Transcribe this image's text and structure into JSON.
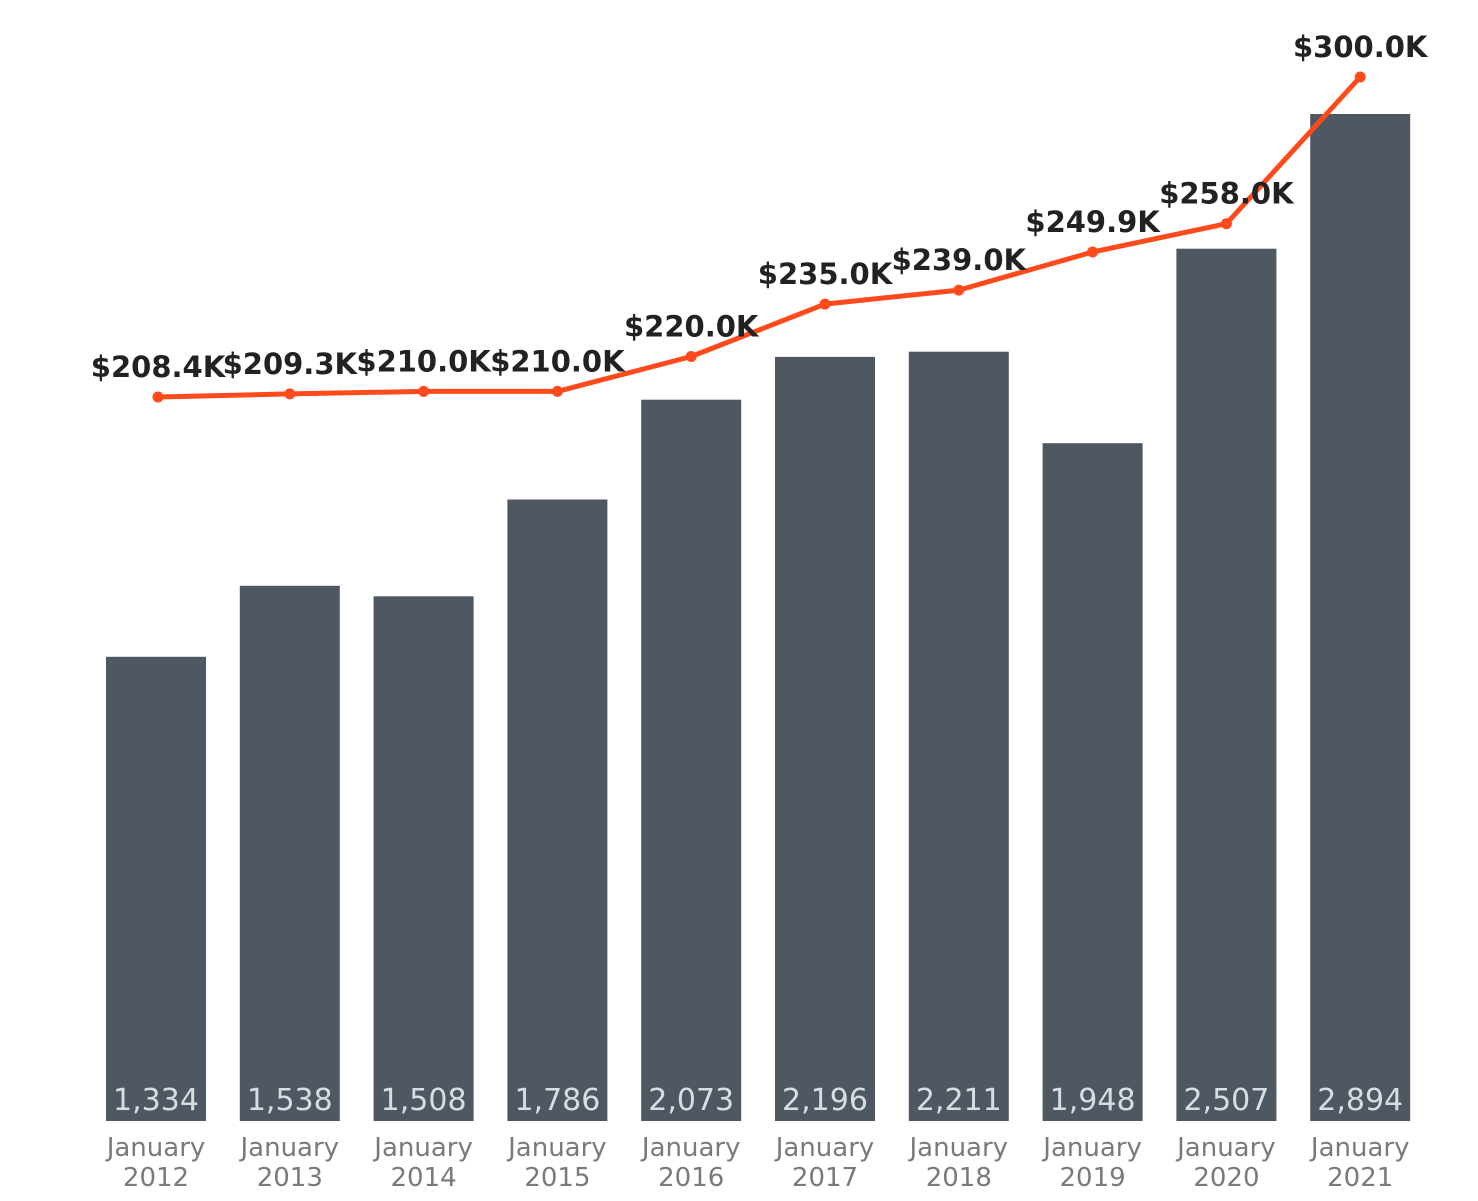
{
  "chart_data": {
    "type": "bar",
    "categories": [
      [
        "January",
        "2012"
      ],
      [
        "January",
        "2013"
      ],
      [
        "January",
        "2014"
      ],
      [
        "January",
        "2015"
      ],
      [
        "January",
        "2016"
      ],
      [
        "January",
        "2017"
      ],
      [
        "January",
        "2018"
      ],
      [
        "January",
        "2019"
      ],
      [
        "January",
        "2020"
      ],
      [
        "January",
        "2021"
      ]
    ],
    "series": [
      {
        "type": "bar",
        "values": [
          1334,
          1538,
          1508,
          1786,
          2073,
          2196,
          2211,
          1948,
          2507,
          2894
        ],
        "labels": [
          "1,334",
          "1,538",
          "1,508",
          "1,786",
          "2,073",
          "2,196",
          "2,211",
          "1,948",
          "2,507",
          "2,894"
        ],
        "color": "#4f5862"
      },
      {
        "type": "line",
        "values": [
          208400,
          209300,
          210000,
          210000,
          220000,
          235000,
          239000,
          249900,
          258000,
          300000
        ],
        "labels": [
          "$208.4K",
          "$209.3K",
          "$210.0K",
          "$210.0K",
          "$220.0K",
          "$235.0K",
          "$239.0K",
          "$249.9K",
          "$258.0K",
          "$300.0K"
        ],
        "color": "#ff4a1c"
      }
    ],
    "grid": false,
    "legend": "none"
  }
}
